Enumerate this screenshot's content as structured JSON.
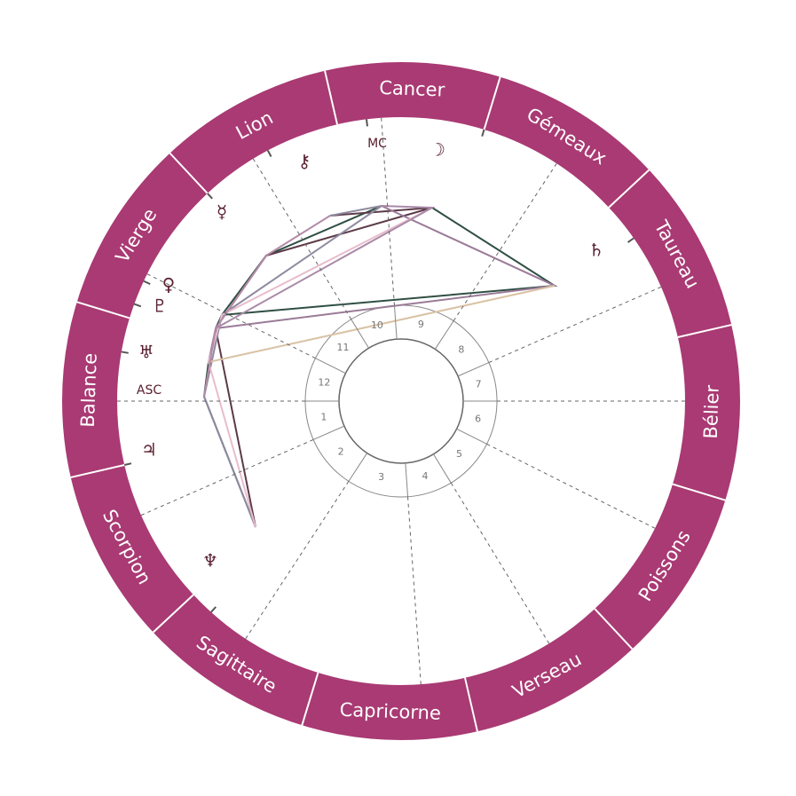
{
  "signs": [
    "Balance",
    "Vierge",
    "Lion",
    "Cancer",
    "Gémeaux",
    "Taureau",
    "Bélier",
    "Poissons",
    "Verseau",
    "Capricorne",
    "Sagittaire",
    "Scorpion"
  ],
  "houses": [
    "1",
    "2",
    "3",
    "4",
    "5",
    "6",
    "7",
    "8",
    "9",
    "10",
    "11",
    "12"
  ],
  "angles": {
    "asc": "ASC",
    "mc": "MC"
  },
  "planets": [
    "☽",
    "♄",
    "⚷",
    "☿",
    "♀",
    "♇",
    "♅",
    "♃",
    "♆"
  ]
}
